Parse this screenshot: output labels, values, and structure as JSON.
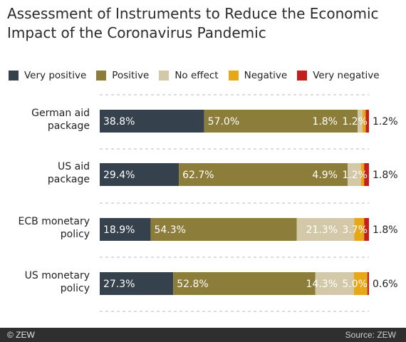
{
  "title": "Assessment of Instruments to Reduce the Economic\nImpact of the Coronavirus Pandemic",
  "footer": {
    "copyright": "© ZEW",
    "source": "Source: ZEW"
  },
  "colors": {
    "very_positive": "#35424d",
    "positive": "#8c7d3a",
    "no_effect": "#d3c8a7",
    "negative": "#e6a817",
    "very_negative": "#c41f1f"
  },
  "chart_data": {
    "type": "bar",
    "orientation": "horizontal",
    "stacked": true,
    "title": "Assessment of Instruments to Reduce the Economic Impact of the Coronavirus Pandemic",
    "categories": [
      "German aid\npackage",
      "US aid\npackage",
      "ECB monetary\npolicy",
      "US monetary\npolicy"
    ],
    "series": [
      {
        "name": "Very positive",
        "color": "#35424d",
        "values": [
          38.8,
          29.4,
          18.9,
          27.3
        ],
        "labels": [
          "38.8%",
          "29.4%",
          "18.9%",
          "27.3%"
        ]
      },
      {
        "name": "Positive",
        "color": "#8c7d3a",
        "values": [
          57.0,
          62.7,
          54.3,
          52.8
        ],
        "labels": [
          "57.0%",
          "62.7%",
          "54.3%",
          "52.8%"
        ]
      },
      {
        "name": "No effect",
        "color": "#d3c8a7",
        "values": [
          1.8,
          4.9,
          21.3,
          14.3
        ],
        "labels": [
          "1.8%",
          "4.9%",
          "21.3%",
          "14.3%"
        ]
      },
      {
        "name": "Negative",
        "color": "#e6a817",
        "values": [
          1.2,
          1.2,
          3.7,
          5.0
        ],
        "labels": [
          "1.2%",
          "1.2%",
          "3.7%",
          "5.0%"
        ]
      },
      {
        "name": "Very negative",
        "color": "#c41f1f",
        "values": [
          1.2,
          1.8,
          1.8,
          0.6
        ],
        "labels": [
          "1.2%",
          "1.8%",
          "1.8%",
          "0.6%"
        ]
      }
    ],
    "xlim": [
      0,
      100
    ],
    "grid": false,
    "legend": "top"
  }
}
